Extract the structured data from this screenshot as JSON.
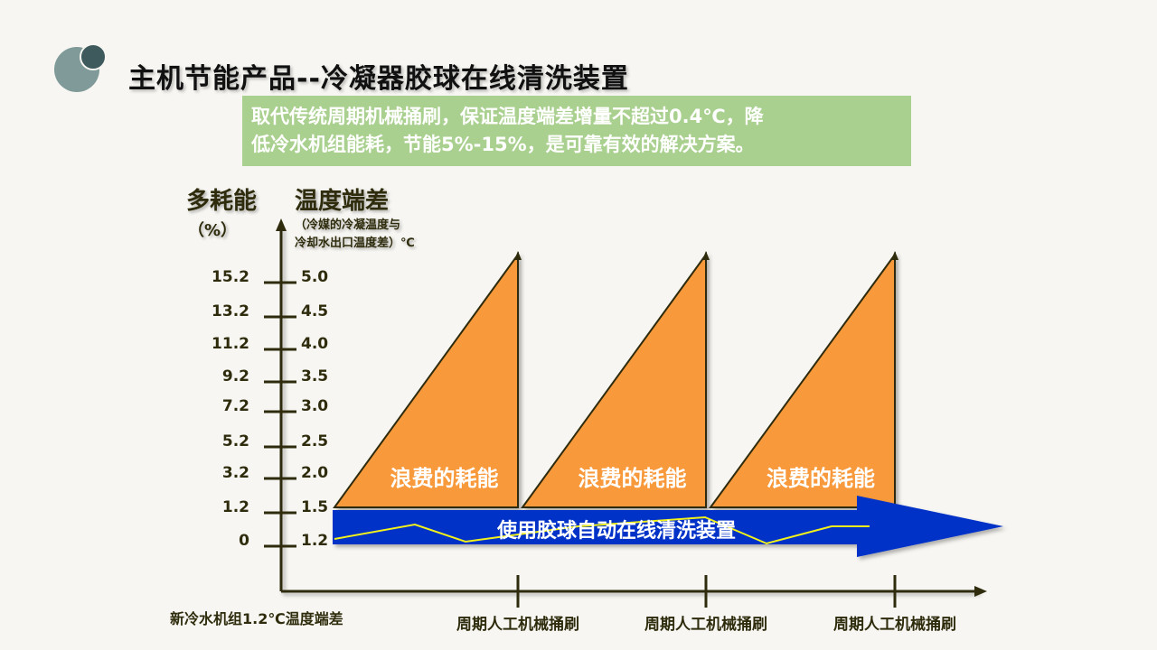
{
  "title": "主机节能产品--冷凝器胶球在线清洗装置",
  "banner": {
    "line1": "取代传统周期机械捅刷，保证温度端差增量不超过0.4℃，降",
    "line2": "低冷水机组能耗，节能5%-15%，是可靠有效的解决方案。"
  },
  "axis": {
    "left_title": "多耗能",
    "left_unit": "（%）",
    "right_title": "温度端差",
    "right_note_1": "（冷媒的冷凝温度与",
    "right_note_2": "冷却水出口温度差）℃",
    "percent_ticks": [
      "15.2",
      "13.2",
      "11.2",
      "9.2",
      "7.2",
      "5.2",
      "3.2",
      "1.2",
      "0"
    ],
    "temp_ticks": [
      "5.0",
      "4.5",
      "4.0",
      "3.5",
      "3.0",
      "2.5",
      "2.0",
      "1.5",
      "1.2"
    ],
    "x_origin_label": "新冷水机组1.2℃温度端差",
    "x_ticks": [
      "周期人工机械捅刷",
      "周期人工机械捅刷",
      "周期人工机械捅刷"
    ]
  },
  "waste_labels": [
    "浪费的耗能",
    "浪费的耗能",
    "浪费的耗能"
  ],
  "arrow_label": "使用胶球自动在线清洗装置",
  "colors": {
    "waste": "#f89a3a",
    "arrow": "#0433c8",
    "line": "#f2f21a",
    "banner": "#a9d08e",
    "axis": "#2e2c0c"
  }
}
